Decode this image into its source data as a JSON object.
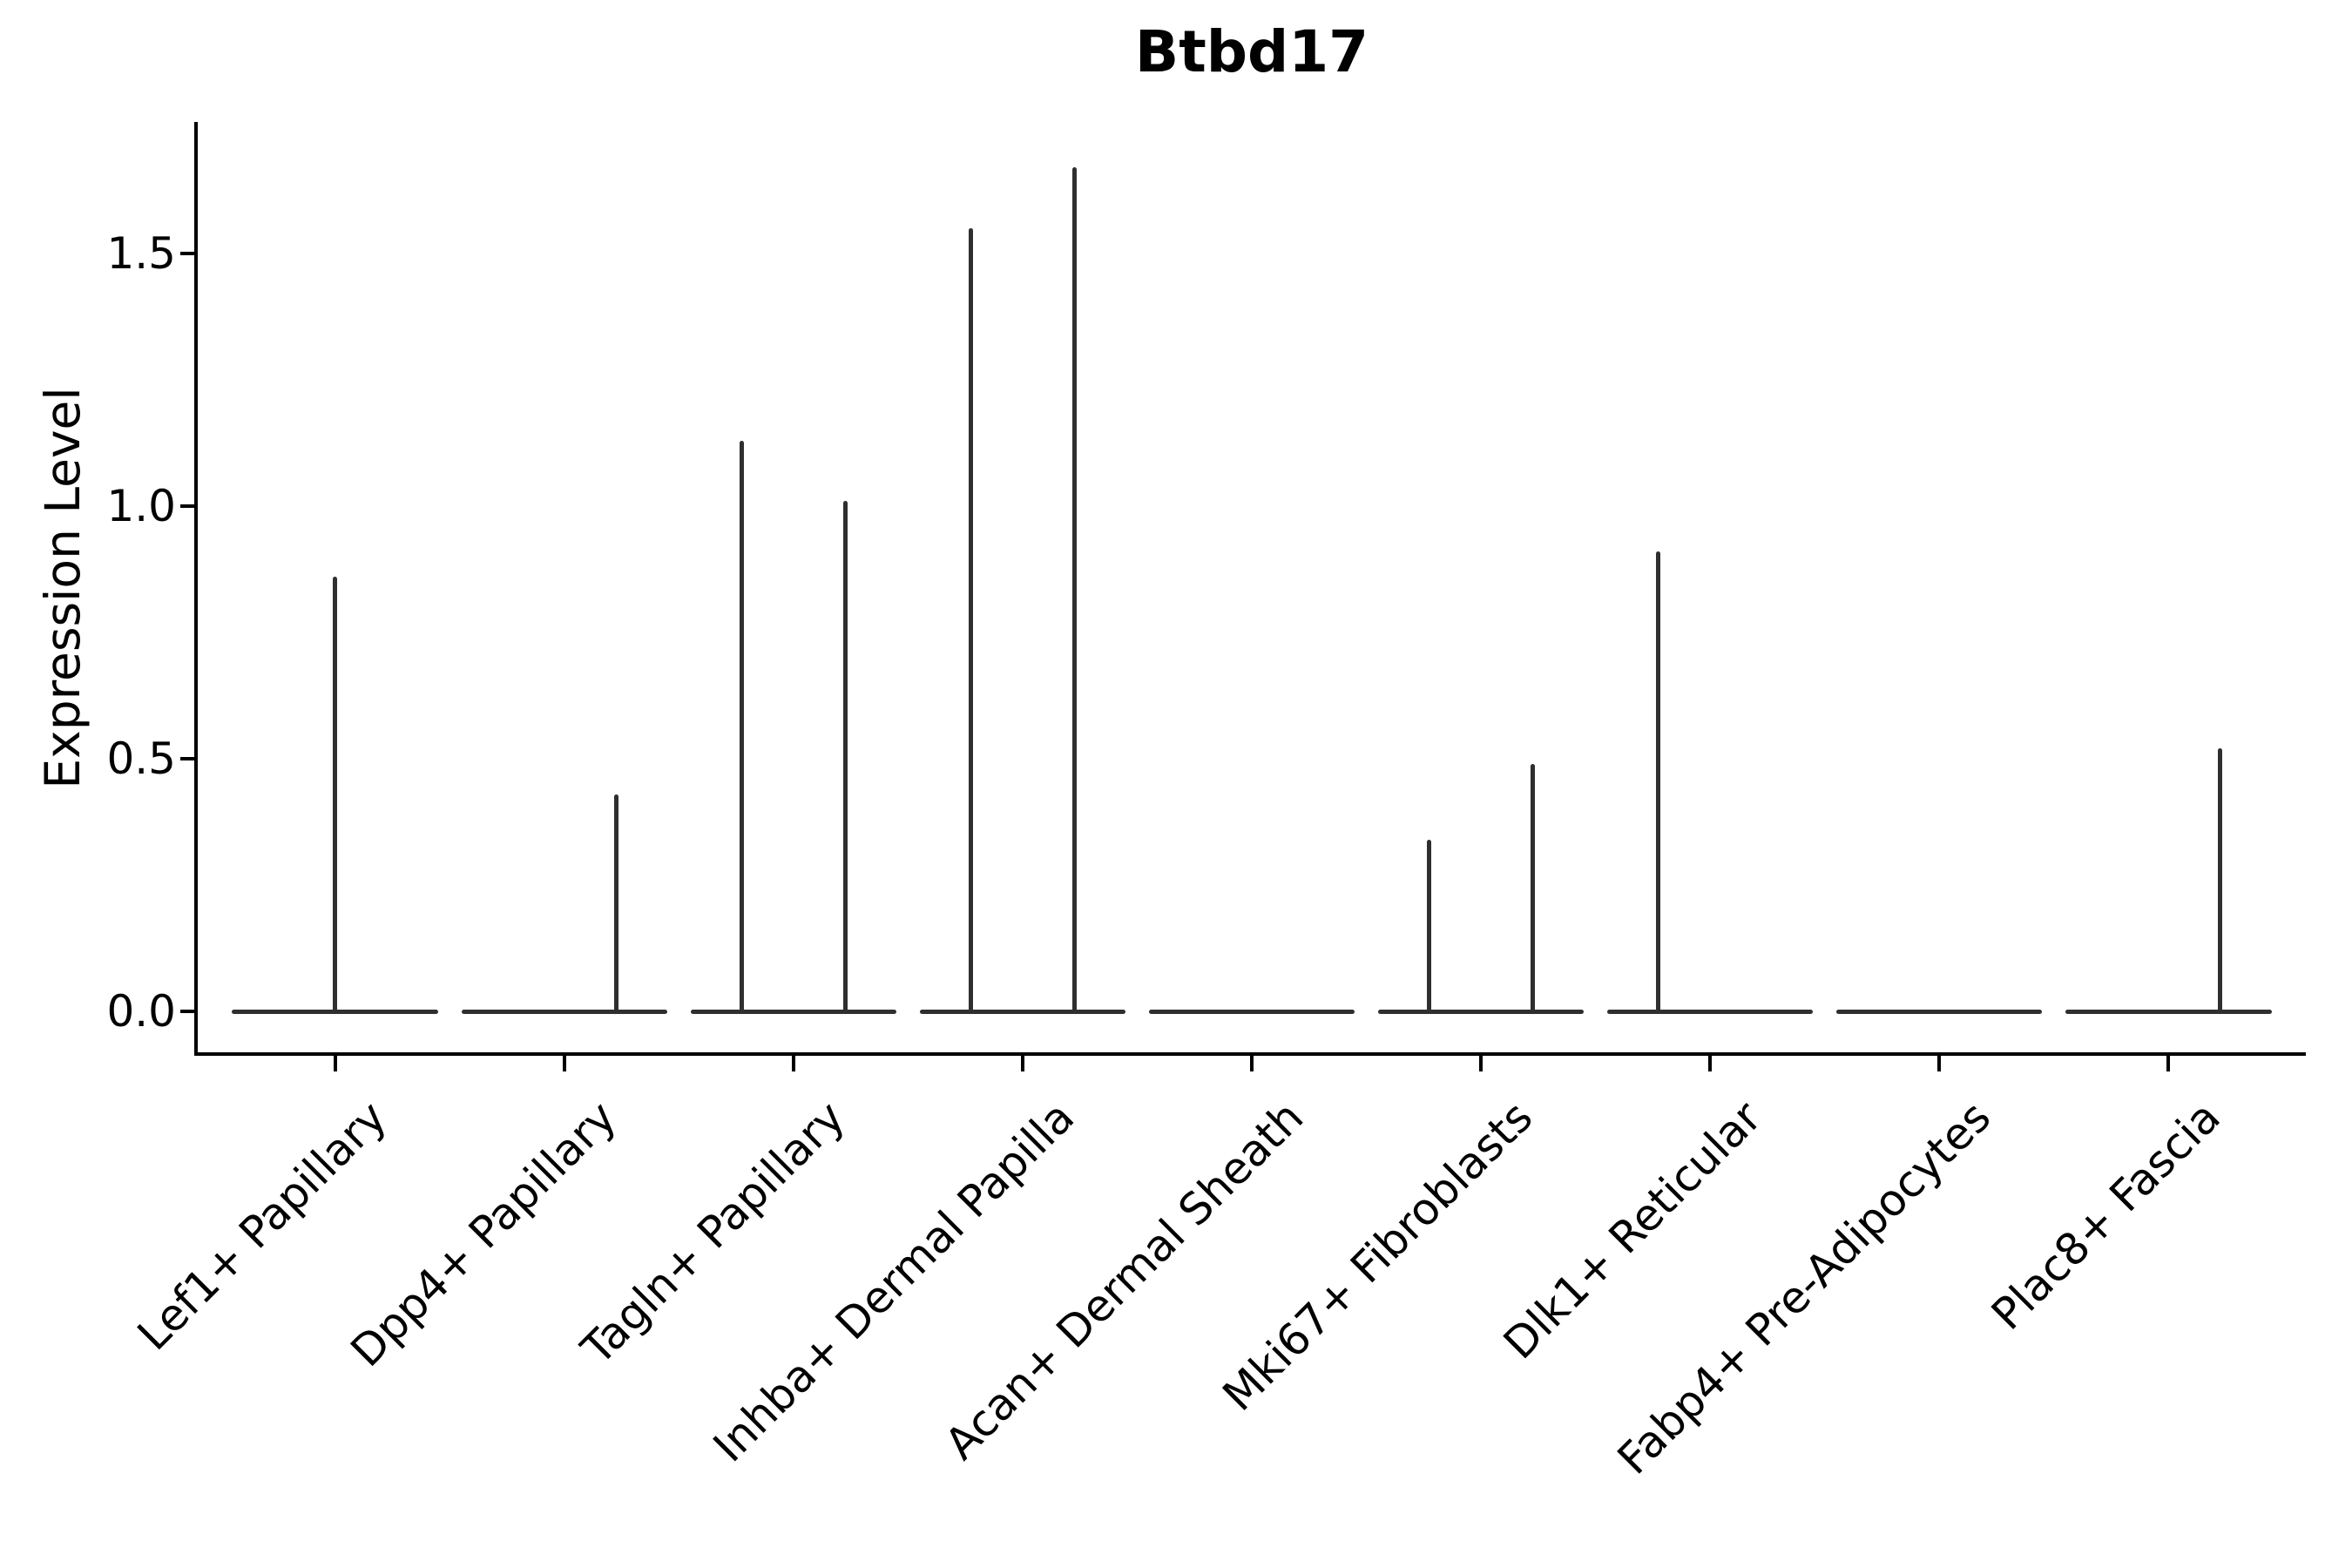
{
  "title": "Btbd17",
  "y_axis": {
    "label": "Expression Level",
    "tick_labels": [
      "0.0",
      "0.5",
      "1.0",
      "1.5"
    ]
  },
  "chart_data": {
    "type": "violin",
    "title": "Btbd17",
    "xlabel": "",
    "ylabel": "Expression Level",
    "yticks": [
      0.0,
      0.5,
      1.0,
      1.5
    ],
    "ylim": [
      -0.085,
      1.76
    ],
    "grid": false,
    "legend": false,
    "x_tick_rotation_deg": 45,
    "categories": [
      "Lef1+ Papillary",
      "Dpp4+ Papillary",
      "Tagln+ Papillary",
      "Inhba+ Dermal Papilla",
      "Acan+ Dermal Sheath",
      "Mki67+ Fibroblasts",
      "Dlk1+ Reticular",
      "Fabp4+ Pre-Adipocytes",
      "Plac8+ Fascia"
    ],
    "violins": [
      {
        "category": "Lef1+ Papillary",
        "baseline_halfwidth": 0.45,
        "spikes": [
          {
            "offset": 0.0,
            "value": 0.86
          }
        ]
      },
      {
        "category": "Dpp4+ Papillary",
        "baseline_halfwidth": 0.45,
        "spikes": [
          {
            "offset": 0.225,
            "value": 0.43
          }
        ]
      },
      {
        "category": "Tagln+ Papillary",
        "baseline_halfwidth": 0.45,
        "spikes": [
          {
            "offset": -0.225,
            "value": 1.13
          },
          {
            "offset": 0.225,
            "value": 1.01
          }
        ]
      },
      {
        "category": "Inhba+ Dermal Papilla",
        "baseline_halfwidth": 0.45,
        "spikes": [
          {
            "offset": -0.225,
            "value": 1.55
          },
          {
            "offset": 0.225,
            "value": 1.67
          }
        ]
      },
      {
        "category": "Acan+ Dermal Sheath",
        "baseline_halfwidth": 0.45,
        "spikes": []
      },
      {
        "category": "Mki67+ Fibroblasts",
        "baseline_halfwidth": 0.45,
        "spikes": [
          {
            "offset": -0.225,
            "value": 0.34
          },
          {
            "offset": 0.225,
            "value": 0.49
          }
        ]
      },
      {
        "category": "Dlk1+ Reticular",
        "baseline_halfwidth": 0.45,
        "spikes": [
          {
            "offset": -0.225,
            "value": 0.91
          }
        ]
      },
      {
        "category": "Fabp4+ Pre-Adipocytes",
        "baseline_halfwidth": 0.45,
        "spikes": []
      },
      {
        "category": "Plac8+ Fascia",
        "baseline_halfwidth": 0.45,
        "spikes": [
          {
            "offset": 0.225,
            "value": 0.52
          }
        ]
      }
    ],
    "colors": {
      "violin_line": "#2f2f2f",
      "axis": "#000000",
      "text": "#000000",
      "background": "#ffffff"
    }
  }
}
